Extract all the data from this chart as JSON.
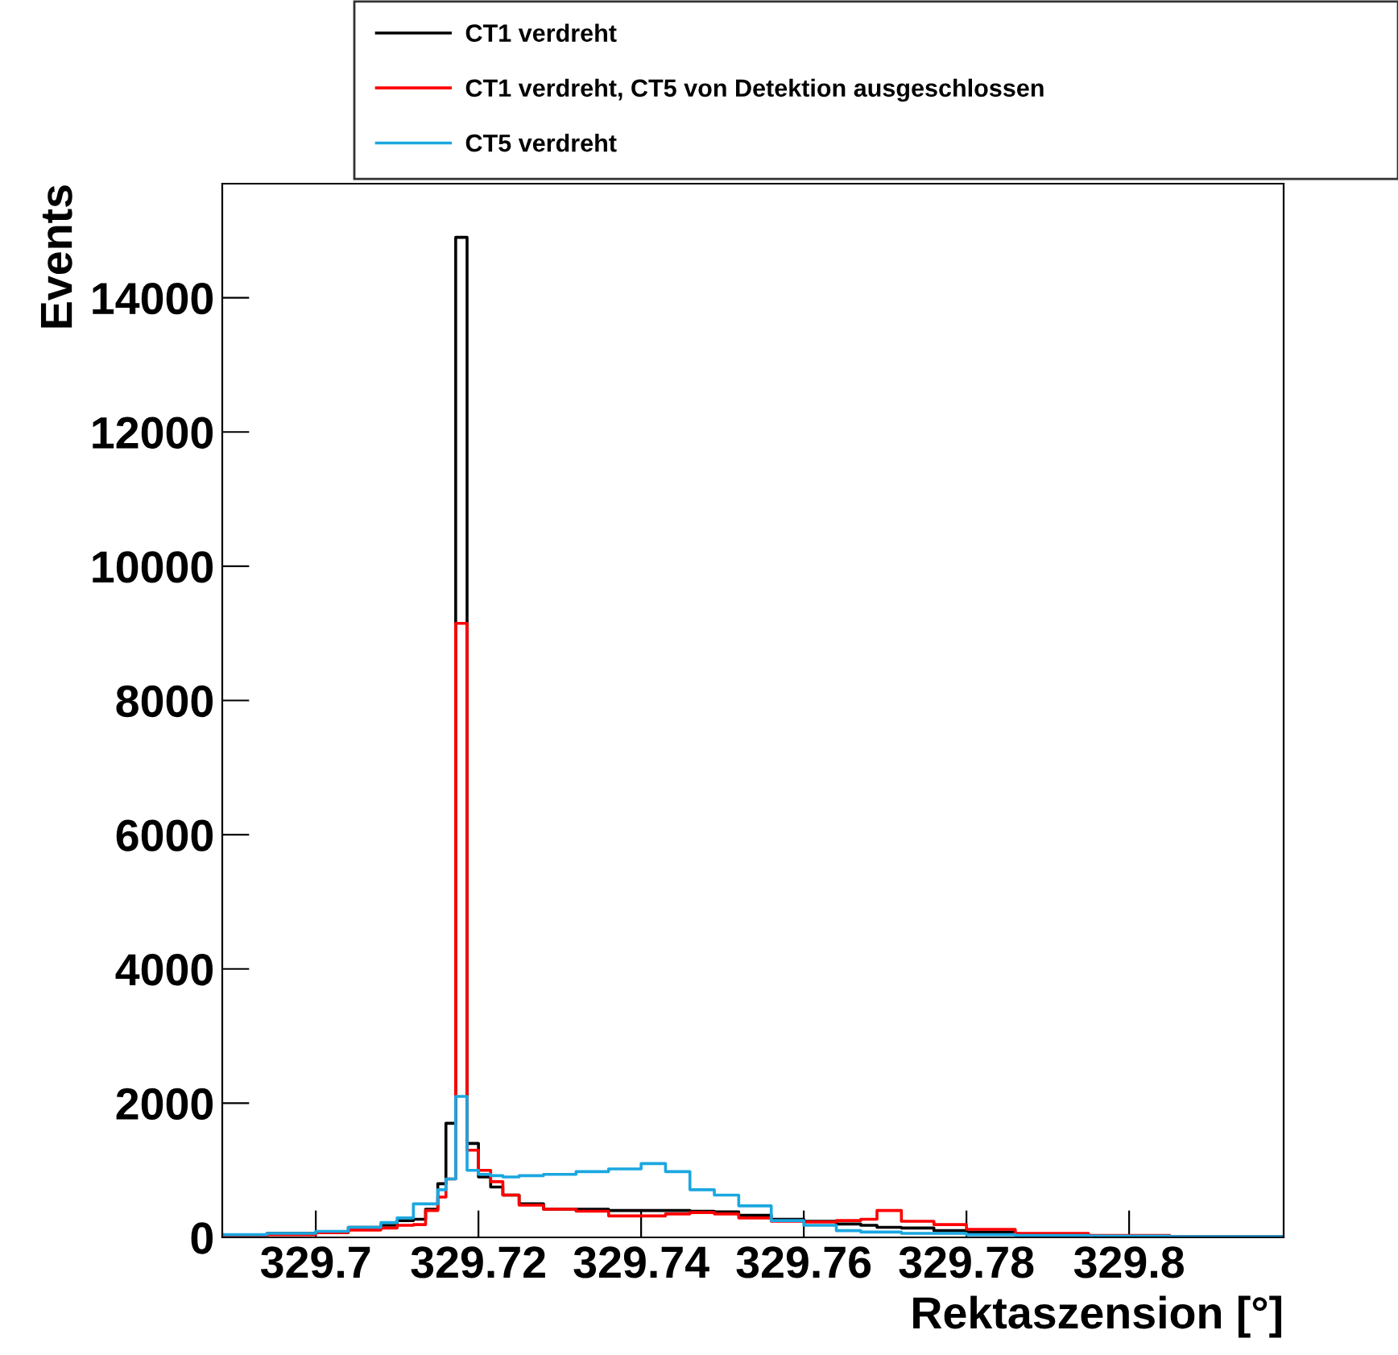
{
  "chart_data": {
    "type": "histogram",
    "xlabel": "Rektaszension [°]",
    "ylabel": "Events",
    "bins": [
      329.6885,
      329.694,
      329.7,
      329.704,
      329.708,
      329.71,
      329.712,
      329.7135,
      329.715,
      329.716,
      329.7172,
      329.7186,
      329.72,
      329.7215,
      329.723,
      329.725,
      329.728,
      329.732,
      329.736,
      329.74,
      329.743,
      329.746,
      329.749,
      329.752,
      329.756,
      329.76,
      329.764,
      329.767,
      329.769,
      329.772,
      329.776,
      329.78,
      329.786,
      329.795,
      329.805,
      329.819
    ],
    "series": [
      {
        "name": "CT1 verdreht",
        "color": "#000000",
        "values": [
          30,
          60,
          80,
          150,
          180,
          250,
          270,
          420,
          800,
          1700,
          14900,
          1400,
          900,
          750,
          630,
          500,
          420,
          420,
          400,
          400,
          400,
          390,
          380,
          330,
          270,
          240,
          200,
          180,
          150,
          140,
          100,
          80,
          40,
          20,
          10
        ]
      },
      {
        "name": "CT1 verdreht, CT5 von Detektion ausgeschlossen",
        "color": "#ff0000",
        "values": [
          20,
          40,
          70,
          110,
          140,
          180,
          190,
          400,
          600,
          870,
          9150,
          1300,
          1000,
          830,
          630,
          480,
          420,
          390,
          320,
          320,
          350,
          370,
          350,
          290,
          240,
          230,
          250,
          270,
          400,
          240,
          190,
          120,
          60,
          30,
          10
        ]
      },
      {
        "name": "CT5 verdreht",
        "color": "#1aa7e0",
        "values": [
          40,
          60,
          90,
          150,
          220,
          290,
          500,
          500,
          710,
          870,
          2100,
          1000,
          940,
          920,
          900,
          920,
          940,
          980,
          1020,
          1100,
          980,
          710,
          630,
          470,
          250,
          180,
          100,
          80,
          80,
          60,
          60,
          40,
          30,
          20,
          10
        ]
      }
    ],
    "xlim": [
      329.6885,
      329.819
    ],
    "xticks": [
      329.7,
      329.72,
      329.74,
      329.76,
      329.78,
      329.8
    ],
    "ylim": [
      0,
      15700
    ],
    "yticks": [
      0,
      2000,
      4000,
      6000,
      8000,
      10000,
      12000,
      14000
    ],
    "grid": false,
    "legend": "top right"
  }
}
